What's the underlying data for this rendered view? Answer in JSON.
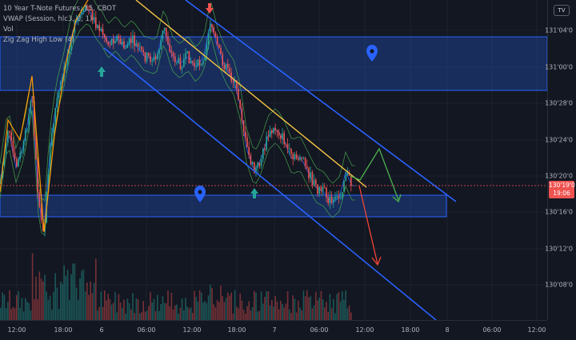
{
  "chart": {
    "title": "10 Year T-Note Futures, 15, CBOT",
    "indicators": [
      "VWAP (Session, hlc3, 0, 1)",
      "Vol",
      "Zig Zag High Low (4)"
    ],
    "corner_badge": "TV",
    "current_price": "130'19'0",
    "countdown": "19:06"
  },
  "chart_data": {
    "type": "candlestick",
    "timeframe": "15",
    "price_axis_ticks": [
      "131'04'0",
      "131'00'0",
      "130'28'0",
      "130'24'0",
      "130'20'0",
      "130'16'0",
      "130'12'0",
      "130'08'0"
    ],
    "time_axis_ticks": [
      "12:00",
      "18:00",
      "6",
      "06:00",
      "12:00",
      "18:00",
      "7",
      "06:00",
      "12:00",
      "18:00",
      "8",
      "06:00",
      "12:00"
    ]
  },
  "colors": {
    "background": "#131722",
    "up": "#26a69a",
    "down": "#ef5350",
    "channel": "#2962ff",
    "zone_fill": "#1e3f8a",
    "trendline": "#f5c542",
    "projection_up": "#4caf50",
    "projection_down": "#f44336",
    "vwap": "#2962ff",
    "band": "#4caf50"
  },
  "markers": {
    "upper_zone_icon": "map-pin-icon",
    "lower_zone_icon": "map-pin-icon",
    "arrows": [
      "green-up-arrow",
      "red-down-arrow",
      "green-up-arrow"
    ]
  }
}
